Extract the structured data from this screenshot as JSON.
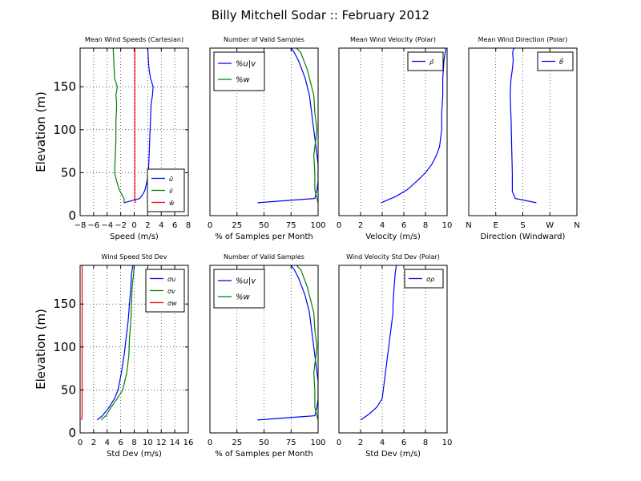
{
  "figure": {
    "title": "Billy Mitchell Sodar :: February 2012"
  },
  "colors": {
    "blue": "#0000ff",
    "green": "#008000",
    "red": "#ff0000",
    "axis": "#000000"
  },
  "chart_data": [
    {
      "type": "line",
      "title": "Mean Wind Speeds (Cartesian)",
      "xlabel": "Speed (m/s)",
      "ylabel": "Elevation (m)",
      "xlim": [
        -8,
        8
      ],
      "ylim": [
        0,
        195
      ],
      "xticks": [
        -8,
        -6,
        -4,
        -2,
        0,
        2,
        4,
        6,
        8
      ],
      "xticklabels": [
        "−8",
        "−6",
        "−4",
        "−2",
        "0",
        "2",
        "4",
        "6",
        "8"
      ],
      "yticks": [
        0,
        50,
        100,
        150
      ],
      "grid": true,
      "legend": "lower-right",
      "series": [
        {
          "name": "ū",
          "color": "blue",
          "x": [
            -1.5,
            0.8,
            1.3,
            1.6,
            1.9,
            2.1,
            2.2,
            2.3,
            2.4,
            2.5,
            2.7,
            2.8,
            2.4,
            2.2,
            2.1,
            2.0
          ],
          "y": [
            15,
            20,
            25,
            30,
            40,
            50,
            70,
            90,
            110,
            130,
            140,
            150,
            160,
            170,
            180,
            195
          ]
        },
        {
          "name": "v̄",
          "color": "green",
          "x": [
            -1.5,
            -1.5,
            -2.2,
            -2.6,
            -2.9,
            -2.8,
            -2.7,
            -2.7,
            -2.6,
            -2.7,
            -2.5,
            -2.9,
            -3.0,
            -3.1
          ],
          "y": [
            15,
            20,
            30,
            40,
            50,
            70,
            90,
            110,
            130,
            140,
            150,
            160,
            175,
            195
          ]
        },
        {
          "name": "w̄",
          "color": "red",
          "x": [
            0.2,
            0.1,
            0.1,
            0.1,
            0.1,
            0.1,
            0.1,
            0.1
          ],
          "y": [
            15,
            20,
            40,
            70,
            100,
            130,
            160,
            195
          ]
        }
      ]
    },
    {
      "type": "line",
      "title": "Number of Valid Samples",
      "xlabel": "% of Samples per Month",
      "ylabel": "",
      "xlim": [
        0,
        100
      ],
      "ylim": [
        0,
        195
      ],
      "xticks": [
        0,
        25,
        50,
        75,
        100
      ],
      "xticklabels": [
        "0",
        "25",
        "50",
        "75",
        "100"
      ],
      "yticks": [],
      "grid": true,
      "legend": "upper-left",
      "series": [
        {
          "name": "%u|v",
          "color": "blue",
          "x": [
            44,
            97,
            99,
            100,
            100,
            98,
            96,
            94,
            92,
            90,
            88,
            85,
            82,
            78,
            75
          ],
          "y": [
            15,
            20,
            30,
            40,
            60,
            80,
            100,
            120,
            140,
            150,
            160,
            170,
            180,
            190,
            195
          ]
        },
        {
          "name": "%w",
          "color": "green",
          "x": [
            100,
            99,
            97,
            97,
            96,
            98,
            99,
            97,
            96,
            94,
            92,
            90,
            87,
            84,
            80
          ],
          "y": [
            15,
            20,
            30,
            50,
            70,
            90,
            100,
            120,
            140,
            150,
            160,
            170,
            180,
            190,
            195
          ]
        }
      ]
    },
    {
      "type": "line",
      "title": "Mean Wind Velocity (Polar)",
      "xlabel": "Velocity (m/s)",
      "ylabel": "",
      "xlim": [
        0,
        10
      ],
      "ylim": [
        0,
        195
      ],
      "xticks": [
        0,
        2,
        4,
        6,
        8,
        10
      ],
      "xticklabels": [
        "0",
        "2",
        "4",
        "6",
        "8",
        "10"
      ],
      "yticks": [],
      "grid": true,
      "legend": "upper-right",
      "series": [
        {
          "name": "ρ̄",
          "color": "blue",
          "x": [
            3.9,
            5.2,
            6.3,
            7.2,
            8.0,
            8.6,
            9.0,
            9.3,
            9.4,
            9.5,
            9.5,
            9.6,
            9.6,
            9.7,
            9.9
          ],
          "y": [
            15,
            22,
            30,
            40,
            50,
            60,
            70,
            80,
            90,
            100,
            120,
            140,
            160,
            180,
            195
          ]
        }
      ]
    },
    {
      "type": "line",
      "title": "Mean Wind Direction (Polar)",
      "xlabel": "Direction (Windward)",
      "ylabel": "",
      "xlim": [
        0,
        360
      ],
      "ylim": [
        0,
        195
      ],
      "xticks": [
        0,
        90,
        180,
        270,
        360
      ],
      "xticklabels": [
        "N",
        "E",
        "S",
        "W",
        "N"
      ],
      "yticks": [],
      "grid": true,
      "legend": "upper-right",
      "series": [
        {
          "name": "θ̄",
          "color": "blue",
          "x": [
            225,
            155,
            145,
            145,
            143,
            141,
            139,
            138,
            139,
            141,
            145,
            148,
            146,
            150
          ],
          "y": [
            15,
            20,
            28,
            50,
            80,
            110,
            130,
            140,
            150,
            160,
            170,
            180,
            190,
            195
          ]
        }
      ]
    },
    {
      "type": "line",
      "title": "Wind Speed Std Dev",
      "xlabel": "Std Dev (m/s)",
      "ylabel": "Elevation (m)",
      "xlim": [
        0,
        16
      ],
      "ylim": [
        0,
        195
      ],
      "xticks": [
        0,
        2,
        4,
        6,
        8,
        10,
        12,
        14,
        16
      ],
      "xticklabels": [
        "0",
        "2",
        "4",
        "6",
        "8",
        "10",
        "12",
        "14",
        "16"
      ],
      "yticks": [
        0,
        50,
        100,
        150
      ],
      "grid": true,
      "legend": "upper-right",
      "series": [
        {
          "name": "σu",
          "color": "blue",
          "x": [
            2.5,
            3.3,
            4.3,
            5.1,
            5.6,
            6.1,
            6.5,
            6.8,
            7.1,
            7.3,
            7.5,
            7.6,
            7.8
          ],
          "y": [
            15,
            20,
            30,
            40,
            50,
            70,
            90,
            110,
            130,
            150,
            170,
            185,
            195
          ]
        },
        {
          "name": "σv",
          "color": "green",
          "x": [
            3.1,
            3.8,
            4.6,
            5.5,
            6.3,
            6.9,
            7.2,
            7.3,
            7.5,
            7.6,
            7.7,
            7.9,
            8.0
          ],
          "y": [
            15,
            20,
            30,
            40,
            50,
            70,
            90,
            110,
            130,
            150,
            170,
            185,
            195
          ]
        },
        {
          "name": "σw",
          "color": "red",
          "x": [
            0.2,
            0.3,
            0.3,
            0.3,
            0.3,
            0.3,
            0.3
          ],
          "y": [
            15,
            20,
            40,
            70,
            110,
            150,
            195
          ]
        }
      ]
    },
    {
      "type": "line",
      "title": "Number of Valid Samples",
      "xlabel": "% of Samples per Month",
      "ylabel": "",
      "xlim": [
        0,
        100
      ],
      "ylim": [
        0,
        195
      ],
      "xticks": [
        0,
        25,
        50,
        75,
        100
      ],
      "xticklabels": [
        "0",
        "25",
        "50",
        "75",
        "100"
      ],
      "yticks": [],
      "grid": true,
      "legend": "upper-left",
      "series": [
        {
          "name": "%u|v",
          "color": "blue",
          "x": [
            44,
            97,
            99,
            100,
            100,
            98,
            96,
            94,
            92,
            90,
            88,
            85,
            82,
            78,
            75
          ],
          "y": [
            15,
            20,
            30,
            40,
            60,
            80,
            100,
            120,
            140,
            150,
            160,
            170,
            180,
            190,
            195
          ]
        },
        {
          "name": "%w",
          "color": "green",
          "x": [
            100,
            99,
            97,
            97,
            96,
            98,
            99,
            97,
            96,
            94,
            92,
            90,
            87,
            84,
            80
          ],
          "y": [
            15,
            20,
            30,
            50,
            70,
            90,
            100,
            120,
            140,
            150,
            160,
            170,
            180,
            190,
            195
          ]
        }
      ]
    },
    {
      "type": "line",
      "title": "Wind Velocity Std Dev (Polar)",
      "xlabel": "Std Dev (m/s)",
      "ylabel": "",
      "xlim": [
        0,
        10
      ],
      "ylim": [
        0,
        195
      ],
      "xticks": [
        0,
        2,
        4,
        6,
        8,
        10
      ],
      "xticklabels": [
        "0",
        "2",
        "4",
        "6",
        "8",
        "10"
      ],
      "yticks": [],
      "grid": true,
      "legend": "upper-right",
      "series": [
        {
          "name": "σρ",
          "color": "blue",
          "x": [
            2.0,
            2.8,
            3.5,
            4.0,
            4.2,
            4.4,
            4.6,
            4.8,
            5.0,
            5.0,
            5.1,
            5.2,
            5.3
          ],
          "y": [
            15,
            22,
            30,
            40,
            60,
            80,
            100,
            120,
            140,
            150,
            170,
            185,
            195
          ]
        }
      ]
    }
  ]
}
